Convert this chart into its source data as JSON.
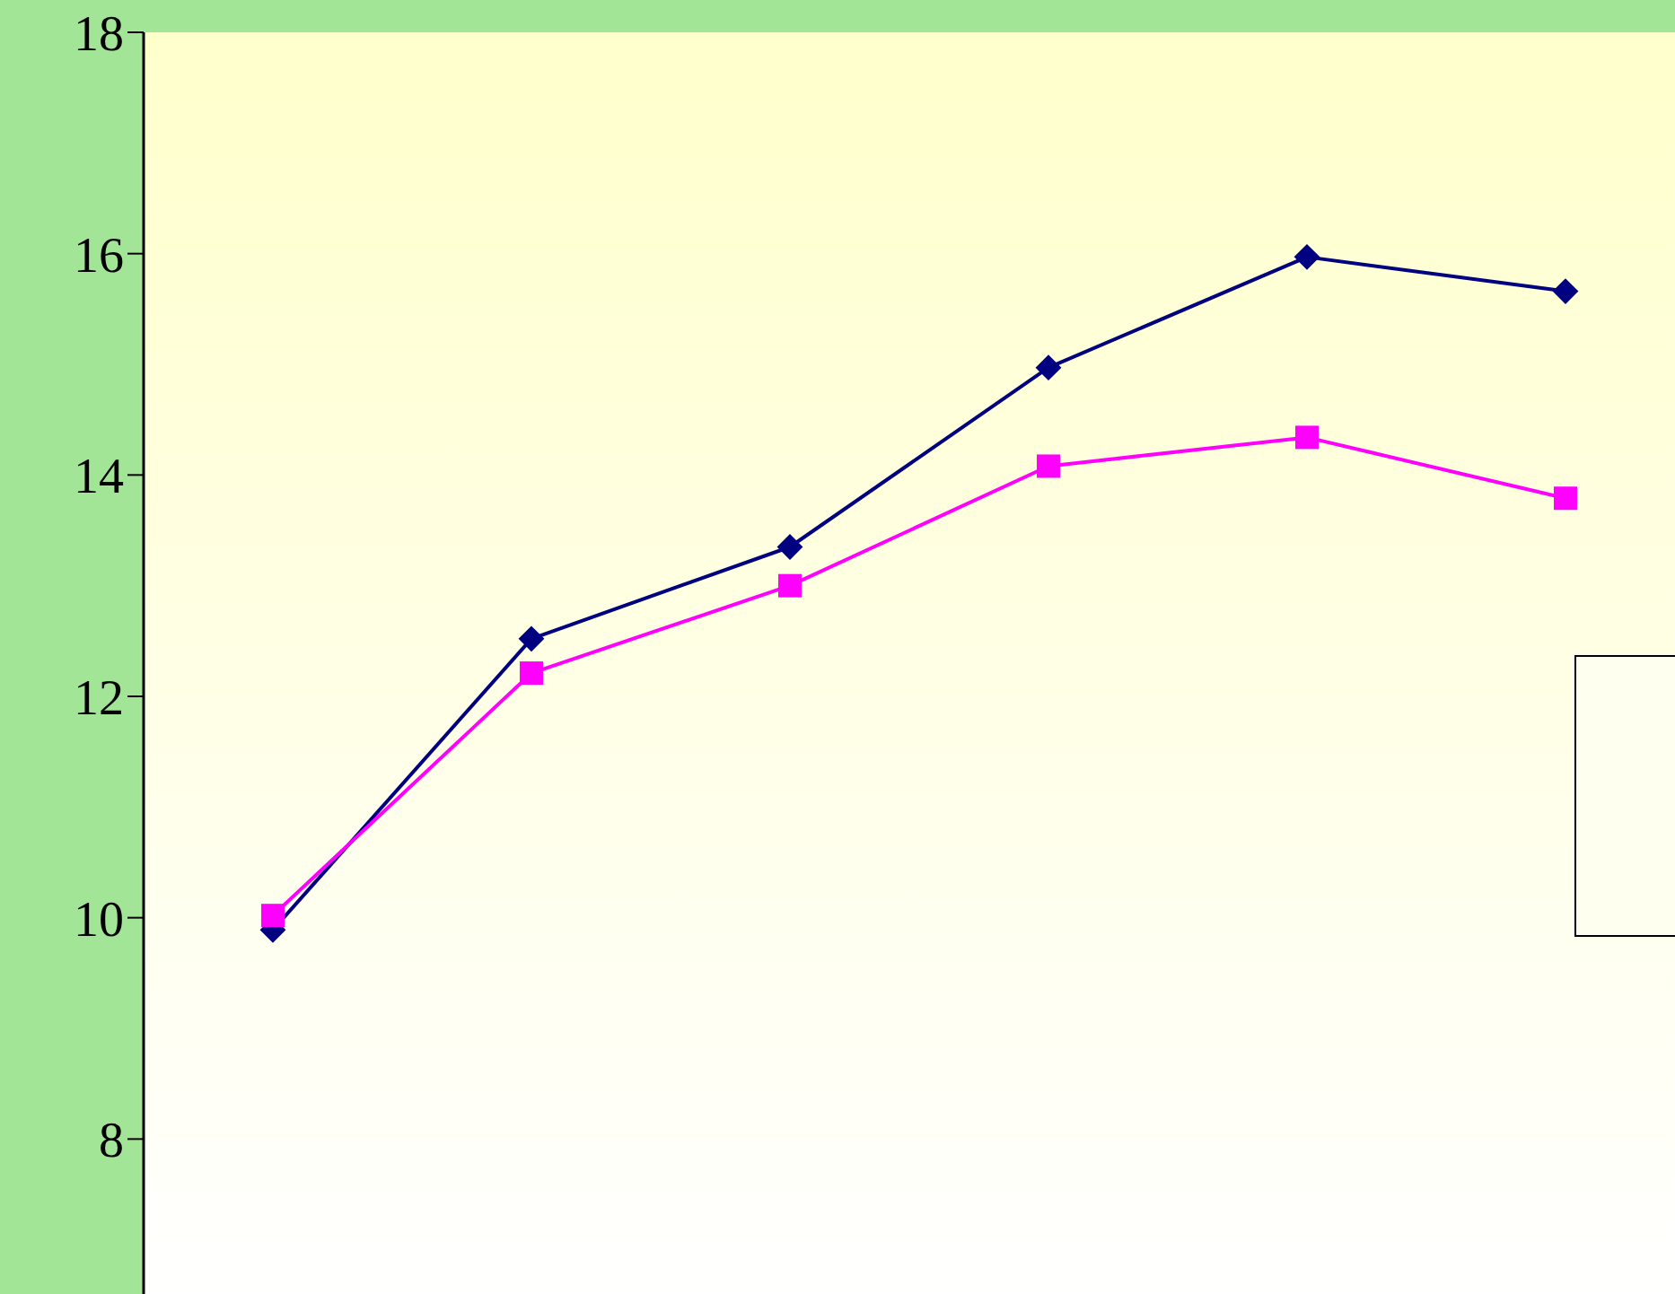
{
  "chart_data": {
    "type": "line",
    "categories": [
      null,
      null,
      null,
      null,
      null,
      null
    ],
    "series": [
      {
        "color": "#000080",
        "marker": "diamond",
        "values": [
          9.89,
          12.52,
          13.35,
          14.97,
          15.97,
          15.66
        ]
      },
      {
        "color": "#ff00ff",
        "marker": "square",
        "values": [
          10.02,
          12.21,
          13.0,
          14.08,
          14.34,
          13.79
        ]
      }
    ],
    "ylim": [
      6.6,
      18
    ],
    "yticks": [
      8,
      10,
      12,
      14,
      16,
      18
    ],
    "grid": false,
    "legend": false,
    "tick_labels": "y"
  }
}
